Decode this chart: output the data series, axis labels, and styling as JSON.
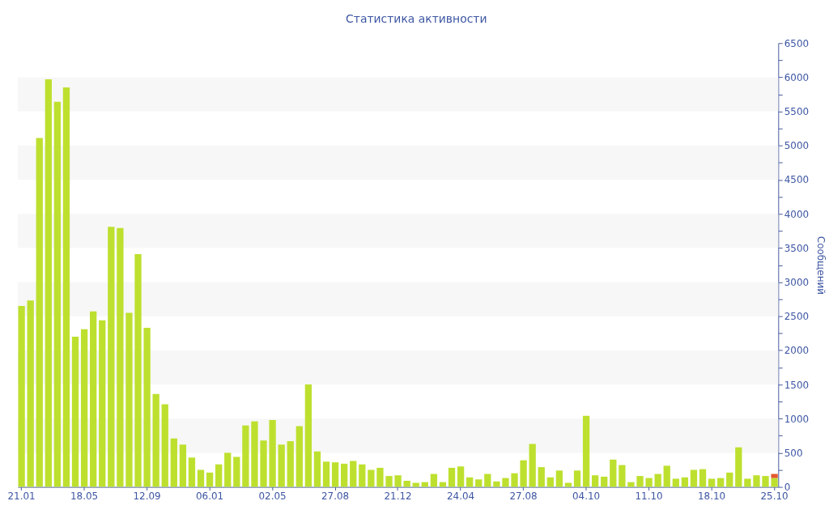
{
  "chart_data": {
    "type": "bar",
    "title": "Статистика активности",
    "ylabel": "Сообщений",
    "categories": [
      "21.01",
      null,
      null,
      null,
      null,
      null,
      null,
      "18.05",
      null,
      null,
      null,
      null,
      null,
      null,
      "12.09",
      null,
      null,
      null,
      null,
      null,
      null,
      "06.01",
      null,
      null,
      null,
      null,
      null,
      null,
      "02.05",
      null,
      null,
      null,
      null,
      null,
      null,
      "27.08",
      null,
      null,
      null,
      null,
      null,
      null,
      "21.12",
      null,
      null,
      null,
      null,
      null,
      null,
      "24.04",
      null,
      null,
      null,
      null,
      null,
      null,
      "27.08",
      null,
      null,
      null,
      null,
      null,
      null,
      "04.10",
      null,
      null,
      null,
      null,
      null,
      null,
      "11.10",
      null,
      null,
      null,
      null,
      null,
      null,
      "18.10",
      null,
      null,
      null,
      null,
      null,
      null,
      "25.10"
    ],
    "series": [
      {
        "color": "#bde02f",
        "values": [
          2650,
          2730,
          5110,
          5970,
          5640,
          5850,
          2200,
          2310,
          2570,
          2440,
          3810,
          3790,
          2550,
          3410,
          2330,
          1360,
          1210,
          710,
          620,
          430,
          250,
          210,
          330,
          500,
          440,
          900,
          960,
          680,
          980,
          620,
          670,
          890,
          1500,
          520,
          370,
          360,
          340,
          380,
          330,
          250,
          280,
          160,
          170,
          90,
          60,
          70,
          190,
          70,
          280,
          300,
          140,
          110,
          190,
          80,
          130,
          200,
          390,
          630,
          290,
          140,
          240,
          60,
          240,
          1040,
          170,
          150,
          400,
          320,
          70,
          160,
          130,
          190,
          310,
          120,
          140,
          250,
          260,
          120,
          130,
          210,
          580,
          120,
          170,
          160,
          130
        ]
      },
      {
        "color": "#e3592c",
        "values": [
          null,
          null,
          null,
          null,
          null,
          null,
          null,
          null,
          null,
          null,
          null,
          null,
          null,
          null,
          null,
          null,
          null,
          null,
          null,
          null,
          null,
          null,
          null,
          null,
          null,
          null,
          null,
          null,
          null,
          null,
          null,
          null,
          null,
          null,
          null,
          null,
          null,
          null,
          null,
          null,
          null,
          null,
          null,
          null,
          null,
          null,
          null,
          null,
          null,
          null,
          null,
          null,
          null,
          null,
          null,
          null,
          null,
          null,
          null,
          null,
          null,
          null,
          null,
          null,
          null,
          null,
          null,
          null,
          null,
          null,
          null,
          null,
          null,
          null,
          null,
          null,
          null,
          null,
          null,
          null,
          null,
          null,
          null,
          null,
          60
        ]
      }
    ],
    "stacked": true,
    "ylim": [
      0,
      6500
    ],
    "yticks": [
      0,
      {
        "value": 250,
        "label": null
      },
      500,
      {
        "value": 750,
        "label": null
      },
      1000,
      {
        "value": 1250,
        "label": null
      },
      1500,
      {
        "value": 1750,
        "label": null
      },
      2000,
      {
        "value": 2250,
        "label": null
      },
      2500,
      {
        "value": 2750,
        "label": null
      },
      3000,
      {
        "value": 3250,
        "label": null
      },
      3500,
      {
        "value": 3750,
        "label": null
      },
      4000,
      {
        "value": 4250,
        "label": null
      },
      4500,
      {
        "value": 4750,
        "label": null
      },
      5000,
      {
        "value": 5250,
        "label": null
      },
      5500,
      {
        "value": 5750,
        "label": null
      },
      6000,
      {
        "value": 6250,
        "label": null
      },
      6500
    ],
    "bands": [
      {
        "axis": "y",
        "from": 500,
        "to": 1000,
        "color": "#f7f7f7"
      },
      {
        "axis": "y",
        "from": 1500,
        "to": 2000,
        "color": "#f7f7f7"
      },
      {
        "axis": "y",
        "from": 2500,
        "to": 3000,
        "color": "#f7f7f7"
      },
      {
        "axis": "y",
        "from": 3500,
        "to": 4000,
        "color": "#f7f7f7"
      },
      {
        "axis": "y",
        "from": 4500,
        "to": 5000,
        "color": "#f7f7f7"
      },
      {
        "axis": "y",
        "from": 5500,
        "to": 6000,
        "color": "#f7f7f7"
      }
    ]
  }
}
